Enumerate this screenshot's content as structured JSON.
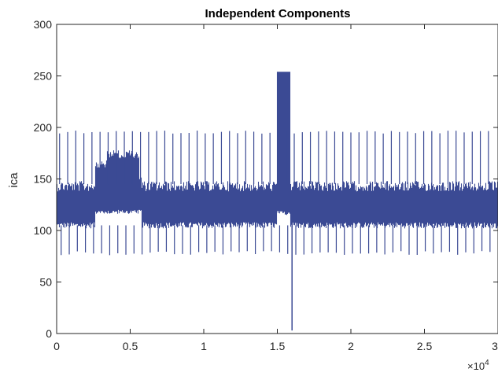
{
  "chart_data": {
    "type": "line",
    "title": "Independent Components",
    "xlabel": "",
    "ylabel": "ica",
    "x_range": [
      0,
      30000
    ],
    "ylim": [
      0,
      300
    ],
    "x_tick_labels": [
      "0",
      "0.5",
      "1",
      "1.5",
      "2",
      "2.5",
      "3"
    ],
    "y_tick_labels": [
      "0",
      "50",
      "100",
      "150",
      "200",
      "250",
      "300"
    ],
    "x_exponent_label": {
      "base": "×10",
      "power": "4"
    },
    "grid": false,
    "line_color": "#3b4a94",
    "series": [
      {
        "baseline_band": [
          105,
          148
        ],
        "sample_count": 30000,
        "spike_period": 550,
        "spike_count": 54,
        "spike_high": 197,
        "spike_low": 76,
        "events": [
          {
            "x_start": 2600,
            "x_end": 3400,
            "band": [
              118,
              168
            ]
          },
          {
            "x_start": 3400,
            "x_end": 5600,
            "band": [
              118,
              178
            ]
          },
          {
            "x_start": 5600,
            "x_end": 5800,
            "band": [
              118,
              155
            ]
          },
          {
            "x_start": 15000,
            "x_end": 15900,
            "band": [
              117,
              254
            ]
          },
          {
            "x": 16000,
            "min": 3
          }
        ]
      }
    ]
  }
}
